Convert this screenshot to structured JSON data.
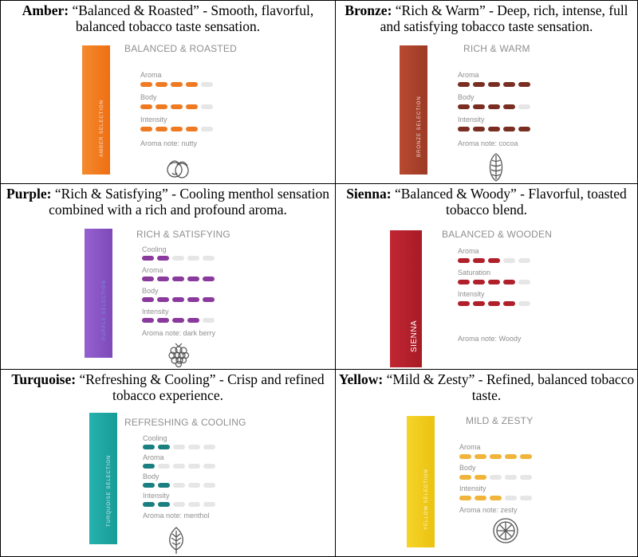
{
  "cells": [
    {
      "name": "amber",
      "heading_name": "Amber:",
      "heading_text": " “Balanced & Roasted” - Smooth, flavorful, balanced tobacco taste sensation.",
      "taste_title": "BALANCED & ROASTED",
      "stick_label": "AMBER SELECTION",
      "color": "#ef7a22",
      "stick_color": "#f27d1f",
      "attributes": [
        {
          "label": "Aroma",
          "level": 4
        },
        {
          "label": "Body",
          "level": 4
        },
        {
          "label": "Intensity",
          "level": 4
        }
      ],
      "aroma_note": "Aroma note: nutty",
      "icon": "hazelnut-icon"
    },
    {
      "name": "bronze",
      "heading_name": "Bronze:",
      "heading_text": " “Rich & Warm” - Deep, rich, intense, full and satisfying tobacco taste sensation.",
      "taste_title": "RICH & WARM",
      "stick_label": "BRONZE SELECTION",
      "color": "#7a2e22",
      "stick_color": "#b0442c",
      "attributes": [
        {
          "label": "Aroma",
          "level": 5
        },
        {
          "label": "Body",
          "level": 4
        },
        {
          "label": "Intensity",
          "level": 5
        }
      ],
      "aroma_note": "Aroma note: cocoa",
      "icon": "cocoa-bean-icon"
    },
    {
      "name": "purple",
      "heading_name": "Purple:",
      "heading_text": " “Rich & Satisfying” - Cooling menthol sensation combined with a rich and profound aroma.",
      "taste_title": "RICH & SATISFYING",
      "stick_label": "PURPLE SELECTION",
      "color": "#8a3a9c",
      "stick_color": "#8a55c4",
      "attributes": [
        {
          "label": "Cooling",
          "level": 2
        },
        {
          "label": "Aroma",
          "level": 5
        },
        {
          "label": "Body",
          "level": 5
        },
        {
          "label": "Intensity",
          "level": 4
        }
      ],
      "aroma_note": "Aroma note: dark berry",
      "icon": "raspberry-icon"
    },
    {
      "name": "sienna",
      "heading_name": "Sienna:",
      "heading_text": " “Balanced & Woody” - Flavorful, toasted tobacco blend.",
      "taste_title": "BALANCED & WOODEN",
      "stick_label": "SIENNA",
      "color": "#b0202a",
      "stick_color": "#b5202b",
      "attributes": [
        {
          "label": "Aroma",
          "level": 3
        },
        {
          "label": "Saturation",
          "level": 4
        },
        {
          "label": "Intensity",
          "level": 4
        }
      ],
      "aroma_note": "Aroma note: Woody",
      "icon": ""
    },
    {
      "name": "turquoise",
      "heading_name": "Turquoise:",
      "heading_text": " “Refreshing & Cooling” - Crisp and refined tobacco experience.",
      "taste_title": "REFRESHING & COOLING",
      "stick_label": "TURQUOISE SELECTION",
      "color": "#1a7f80",
      "stick_color": "#1fa6a3",
      "attributes": [
        {
          "label": "Cooling",
          "level": 2
        },
        {
          "label": "Aroma",
          "level": 1
        },
        {
          "label": "Body",
          "level": 2
        },
        {
          "label": "Intensity",
          "level": 2
        }
      ],
      "aroma_note": "Aroma note: menthol",
      "icon": "leaf-icon"
    },
    {
      "name": "yellow",
      "heading_name": "Yellow:",
      "heading_text": " “Mild & Zesty” - Refined, balanced tobacco taste.",
      "taste_title": "MILD & ZESTY",
      "stick_label": "YELLOW SELECTION",
      "color": "#f0b43a",
      "stick_color": "#f2cc1c",
      "attributes": [
        {
          "label": "Aroma",
          "level": 5
        },
        {
          "label": "Body",
          "level": 2
        },
        {
          "label": "Intensity",
          "level": 3
        }
      ],
      "aroma_note": "Aroma note: zesty",
      "icon": "lemon-slice-icon"
    }
  ]
}
